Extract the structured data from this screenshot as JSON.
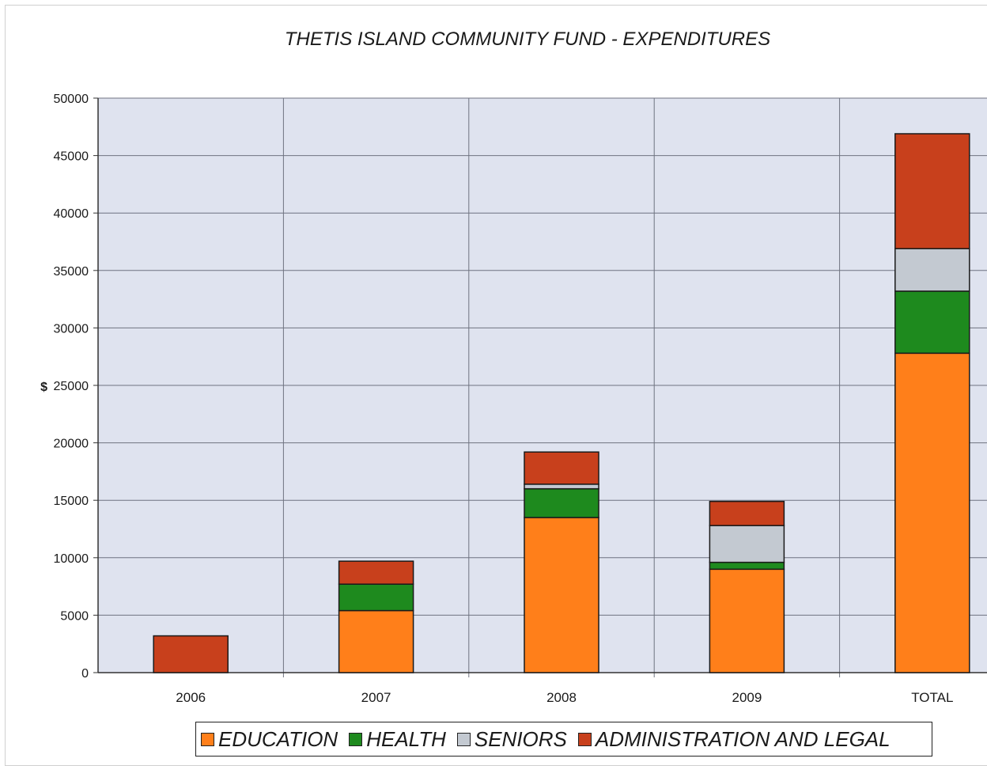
{
  "chart_data": {
    "type": "bar",
    "stacked": true,
    "title": "THETIS ISLAND COMMUNITY FUND - EXPENDITURES",
    "xlabel": "",
    "ylabel": "$",
    "ylim": [
      0,
      50000
    ],
    "yticks": [
      0,
      5000,
      10000,
      15000,
      20000,
      25000,
      30000,
      35000,
      40000,
      45000,
      50000
    ],
    "categories": [
      "2006",
      "2007",
      "2008",
      "2009",
      "TOTAL"
    ],
    "series": [
      {
        "name": "EDUCATION",
        "color": "#ff7f1a",
        "values": [
          0,
          5400,
          13500,
          9000,
          27800
        ]
      },
      {
        "name": "HEALTH",
        "color": "#1e8a1e",
        "values": [
          0,
          2300,
          2500,
          600,
          5400
        ]
      },
      {
        "name": "SENIORS",
        "color": "#c3c9d1",
        "values": [
          0,
          0,
          400,
          3200,
          3700
        ]
      },
      {
        "name": "ADMINISTRATION AND LEGAL",
        "color": "#c8401c",
        "values": [
          3200,
          2000,
          2800,
          2100,
          10000
        ]
      }
    ],
    "grid": true,
    "legend_position": "bottom",
    "plot_background": "#dfe3ef"
  }
}
